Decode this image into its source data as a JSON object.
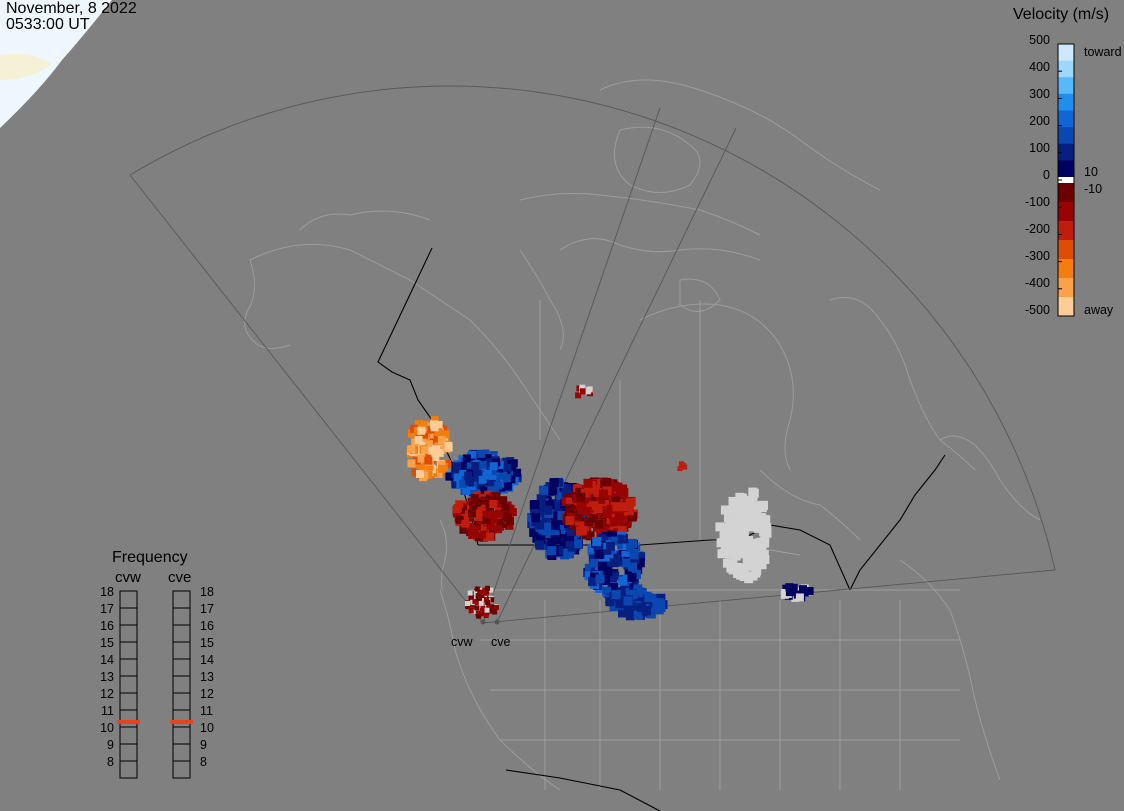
{
  "header": {
    "date": "November, 8 2022",
    "time": "0533:00 UT"
  },
  "colorbar": {
    "title": "Velocity (m/s)",
    "ticks": [
      "500",
      "400",
      "300",
      "200",
      "100",
      "0",
      "-100",
      "-200",
      "-300",
      "-400",
      "-500"
    ],
    "label_toward": "toward",
    "label_away": "away",
    "label_pos": "10",
    "label_neg": "-10",
    "colors": [
      "#cde9fb",
      "#9dd8fb",
      "#57b8fb",
      "#1f8fee",
      "#1166d4",
      "#0a47b0",
      "#061f80",
      "#000060",
      "#ffffff",
      "#6c0000",
      "#970404",
      "#bf1d0d",
      "#dc4d08",
      "#f37e0f",
      "#faa14a",
      "#fccc99"
    ]
  },
  "frequency": {
    "title": "Frequency",
    "radars": [
      {
        "name": "cvw",
        "freq_mhz": 10.8
      },
      {
        "name": "cve",
        "freq_mhz": 10.8
      }
    ],
    "scale": [
      "18",
      "17",
      "16",
      "15",
      "14",
      "13",
      "12",
      "11",
      "10",
      "9",
      "8"
    ],
    "marker_color": "#e8421c"
  },
  "map_labels": {
    "site_west": "cvw",
    "site_east": "cve"
  },
  "legend_colors": {
    "background": "#808080",
    "ice": "#eef7fd",
    "gray_scatter": "#d3d3d3"
  }
}
